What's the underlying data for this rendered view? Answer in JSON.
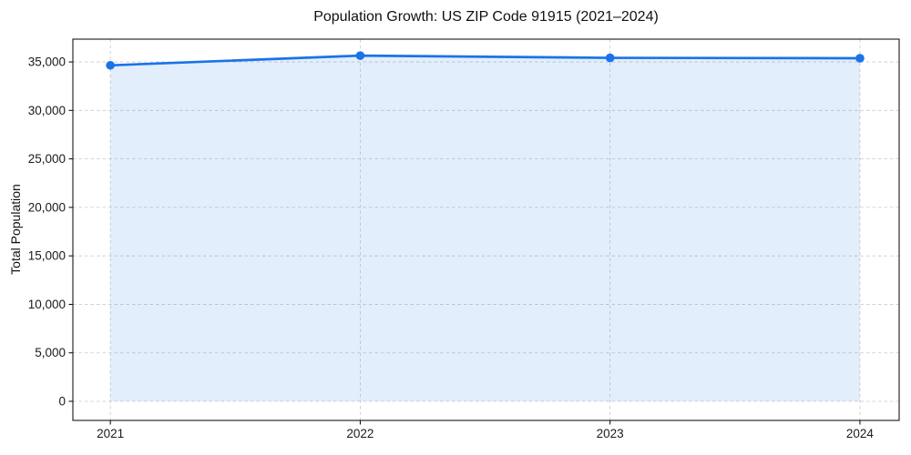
{
  "chart_data": {
    "type": "area",
    "title": "Population Growth: US ZIP Code 91915 (2021–2024)",
    "xlabel": "",
    "ylabel": "Total Population",
    "x": [
      2021,
      2022,
      2023,
      2024
    ],
    "x_tick_labels": [
      "2021",
      "2022",
      "2023",
      "2024"
    ],
    "series": [
      {
        "name": "Total Population",
        "values": [
          34650,
          35650,
          35420,
          35380
        ]
      }
    ],
    "yticks": [
      0,
      5000,
      10000,
      15000,
      20000,
      25000,
      30000,
      35000
    ],
    "ytick_labels": [
      "0",
      "5,000",
      "10,000",
      "15,000",
      "20,000",
      "25,000",
      "30,000",
      "35,000"
    ],
    "xlim": [
      2020.85,
      2024.157
    ],
    "ylim": [
      -1970,
      37350
    ],
    "grid": true,
    "grid_style": "dashed",
    "legend": "none",
    "marker": "circle",
    "colors": {
      "line": "#1a73e8",
      "marker": "#1a73e8",
      "fill": "#1a73e8",
      "fill_opacity": 0.12,
      "grid": "#c9c9c9",
      "spine": "#000000",
      "text": "#1a1a1a",
      "background": "#ffffff"
    }
  }
}
